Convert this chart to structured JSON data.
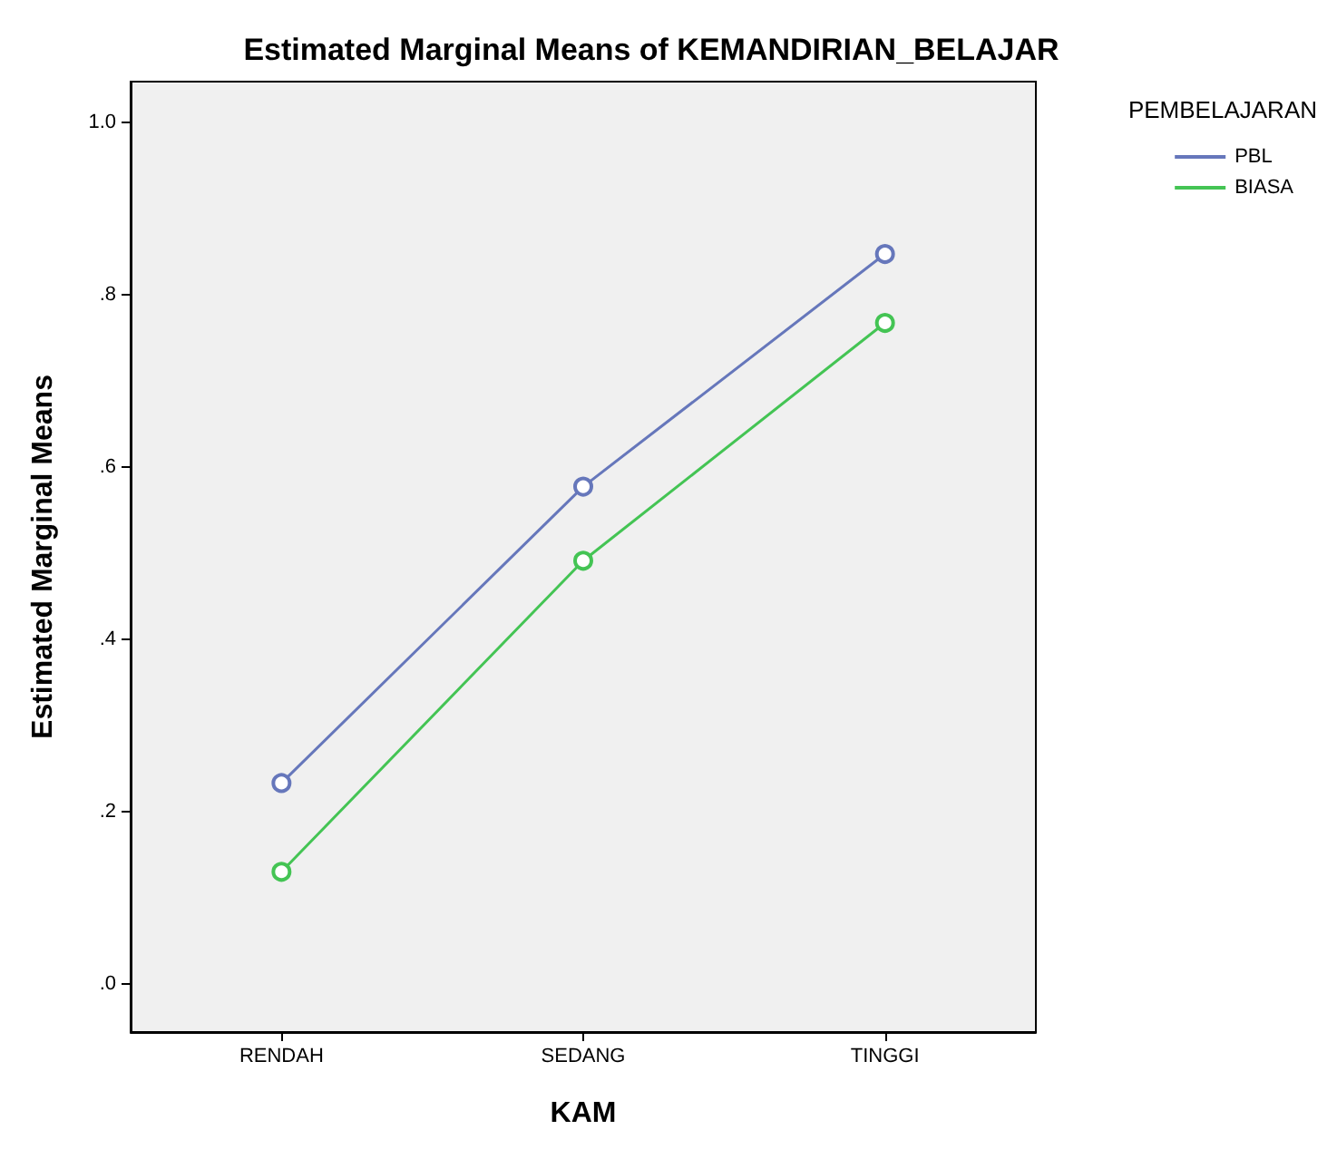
{
  "chart_data": {
    "type": "line",
    "title": "Estimated Marginal Means of KEMANDIRIAN_BELAJAR",
    "xlabel": "KAM",
    "ylabel": "Estimated Marginal Means",
    "legend_title": "PEMBELAJARAN",
    "categories": [
      "RENDAH",
      "SEDANG",
      "TINGGI"
    ],
    "series": [
      {
        "name": "PBL",
        "color": "#6677bb",
        "values": [
          0.233,
          0.577,
          0.847
        ]
      },
      {
        "name": "BIASA",
        "color": "#44c454",
        "values": [
          0.13,
          0.491,
          0.767
        ]
      }
    ],
    "ylim": [
      -0.056,
      1.047
    ],
    "yticks": [
      {
        "value": 0,
        "label": ".0"
      },
      {
        "value": 0.2,
        "label": ".2"
      },
      {
        "value": 0.4,
        "label": ".4"
      },
      {
        "value": 0.6,
        "label": ".6"
      },
      {
        "value": 0.8,
        "label": ".8"
      },
      {
        "value": 1,
        "label": "1.0"
      }
    ],
    "grid": false,
    "legend": "top right",
    "marker": "circle",
    "line_style": "solid"
  }
}
